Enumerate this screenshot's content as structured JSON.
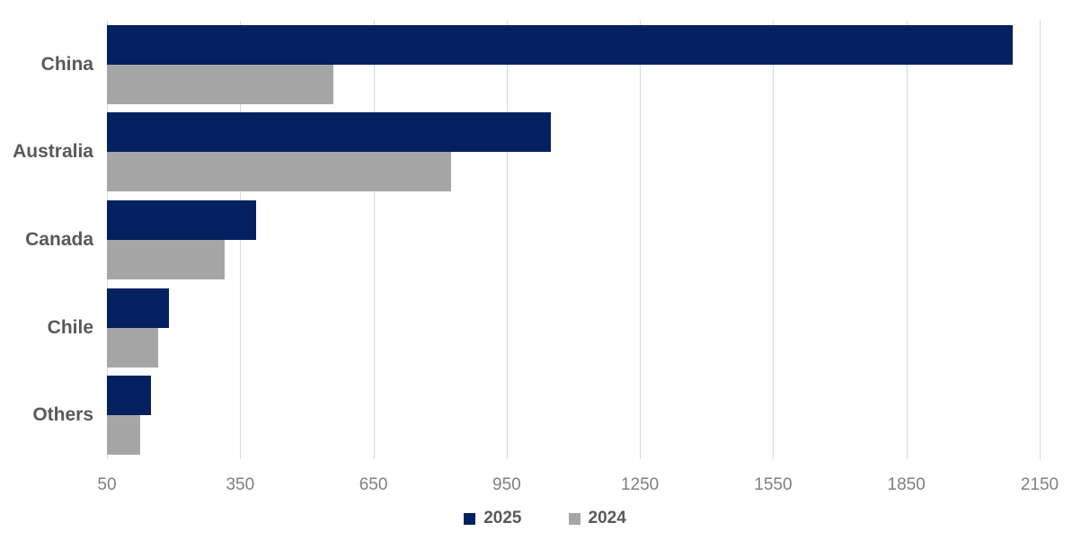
{
  "chart_data": {
    "type": "bar",
    "orientation": "horizontal",
    "title": "",
    "xlabel": "",
    "ylabel": "",
    "categories": [
      "China",
      "Australia",
      "Canada",
      "Chile",
      "Others"
    ],
    "series": [
      {
        "name": "2025",
        "color": "#03215F",
        "values": [
          2090,
          1050,
          385,
          190,
          150
        ]
      },
      {
        "name": "2024",
        "color": "#A6A6A6",
        "values": [
          560,
          825,
          315,
          165,
          125
        ]
      }
    ],
    "xlim": [
      50,
      2150
    ],
    "x_ticks": [
      "50",
      "350",
      "650",
      "950",
      "1250",
      "1550",
      "1850",
      "2150"
    ],
    "grid": true,
    "legend_position": "bottom-center",
    "legend_labels": [
      "2025",
      "2024"
    ]
  },
  "colors": {
    "background": "#FFFFFF",
    "gridline": "#D9D9D9",
    "tick_label": "#7F7F7F",
    "category_label": "#595959",
    "legend_label": "#595959"
  }
}
